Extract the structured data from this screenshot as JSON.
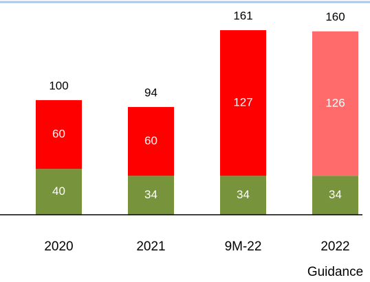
{
  "chart_data": {
    "type": "stacked_bar",
    "categories": [
      "2020",
      "2021",
      "9M-22",
      "2022\nGuidance"
    ],
    "series": [
      {
        "name": null,
        "color": "#77933c",
        "values": [
          40,
          34,
          34,
          34
        ]
      },
      {
        "name": null,
        "color": "#ff0000",
        "colors": [
          "#ff0000",
          "#ff0000",
          "#ff0000",
          "#ff6b6b"
        ],
        "values": [
          60,
          60,
          127,
          126
        ]
      }
    ],
    "totals": [
      100,
      94,
      161,
      160
    ]
  }
}
